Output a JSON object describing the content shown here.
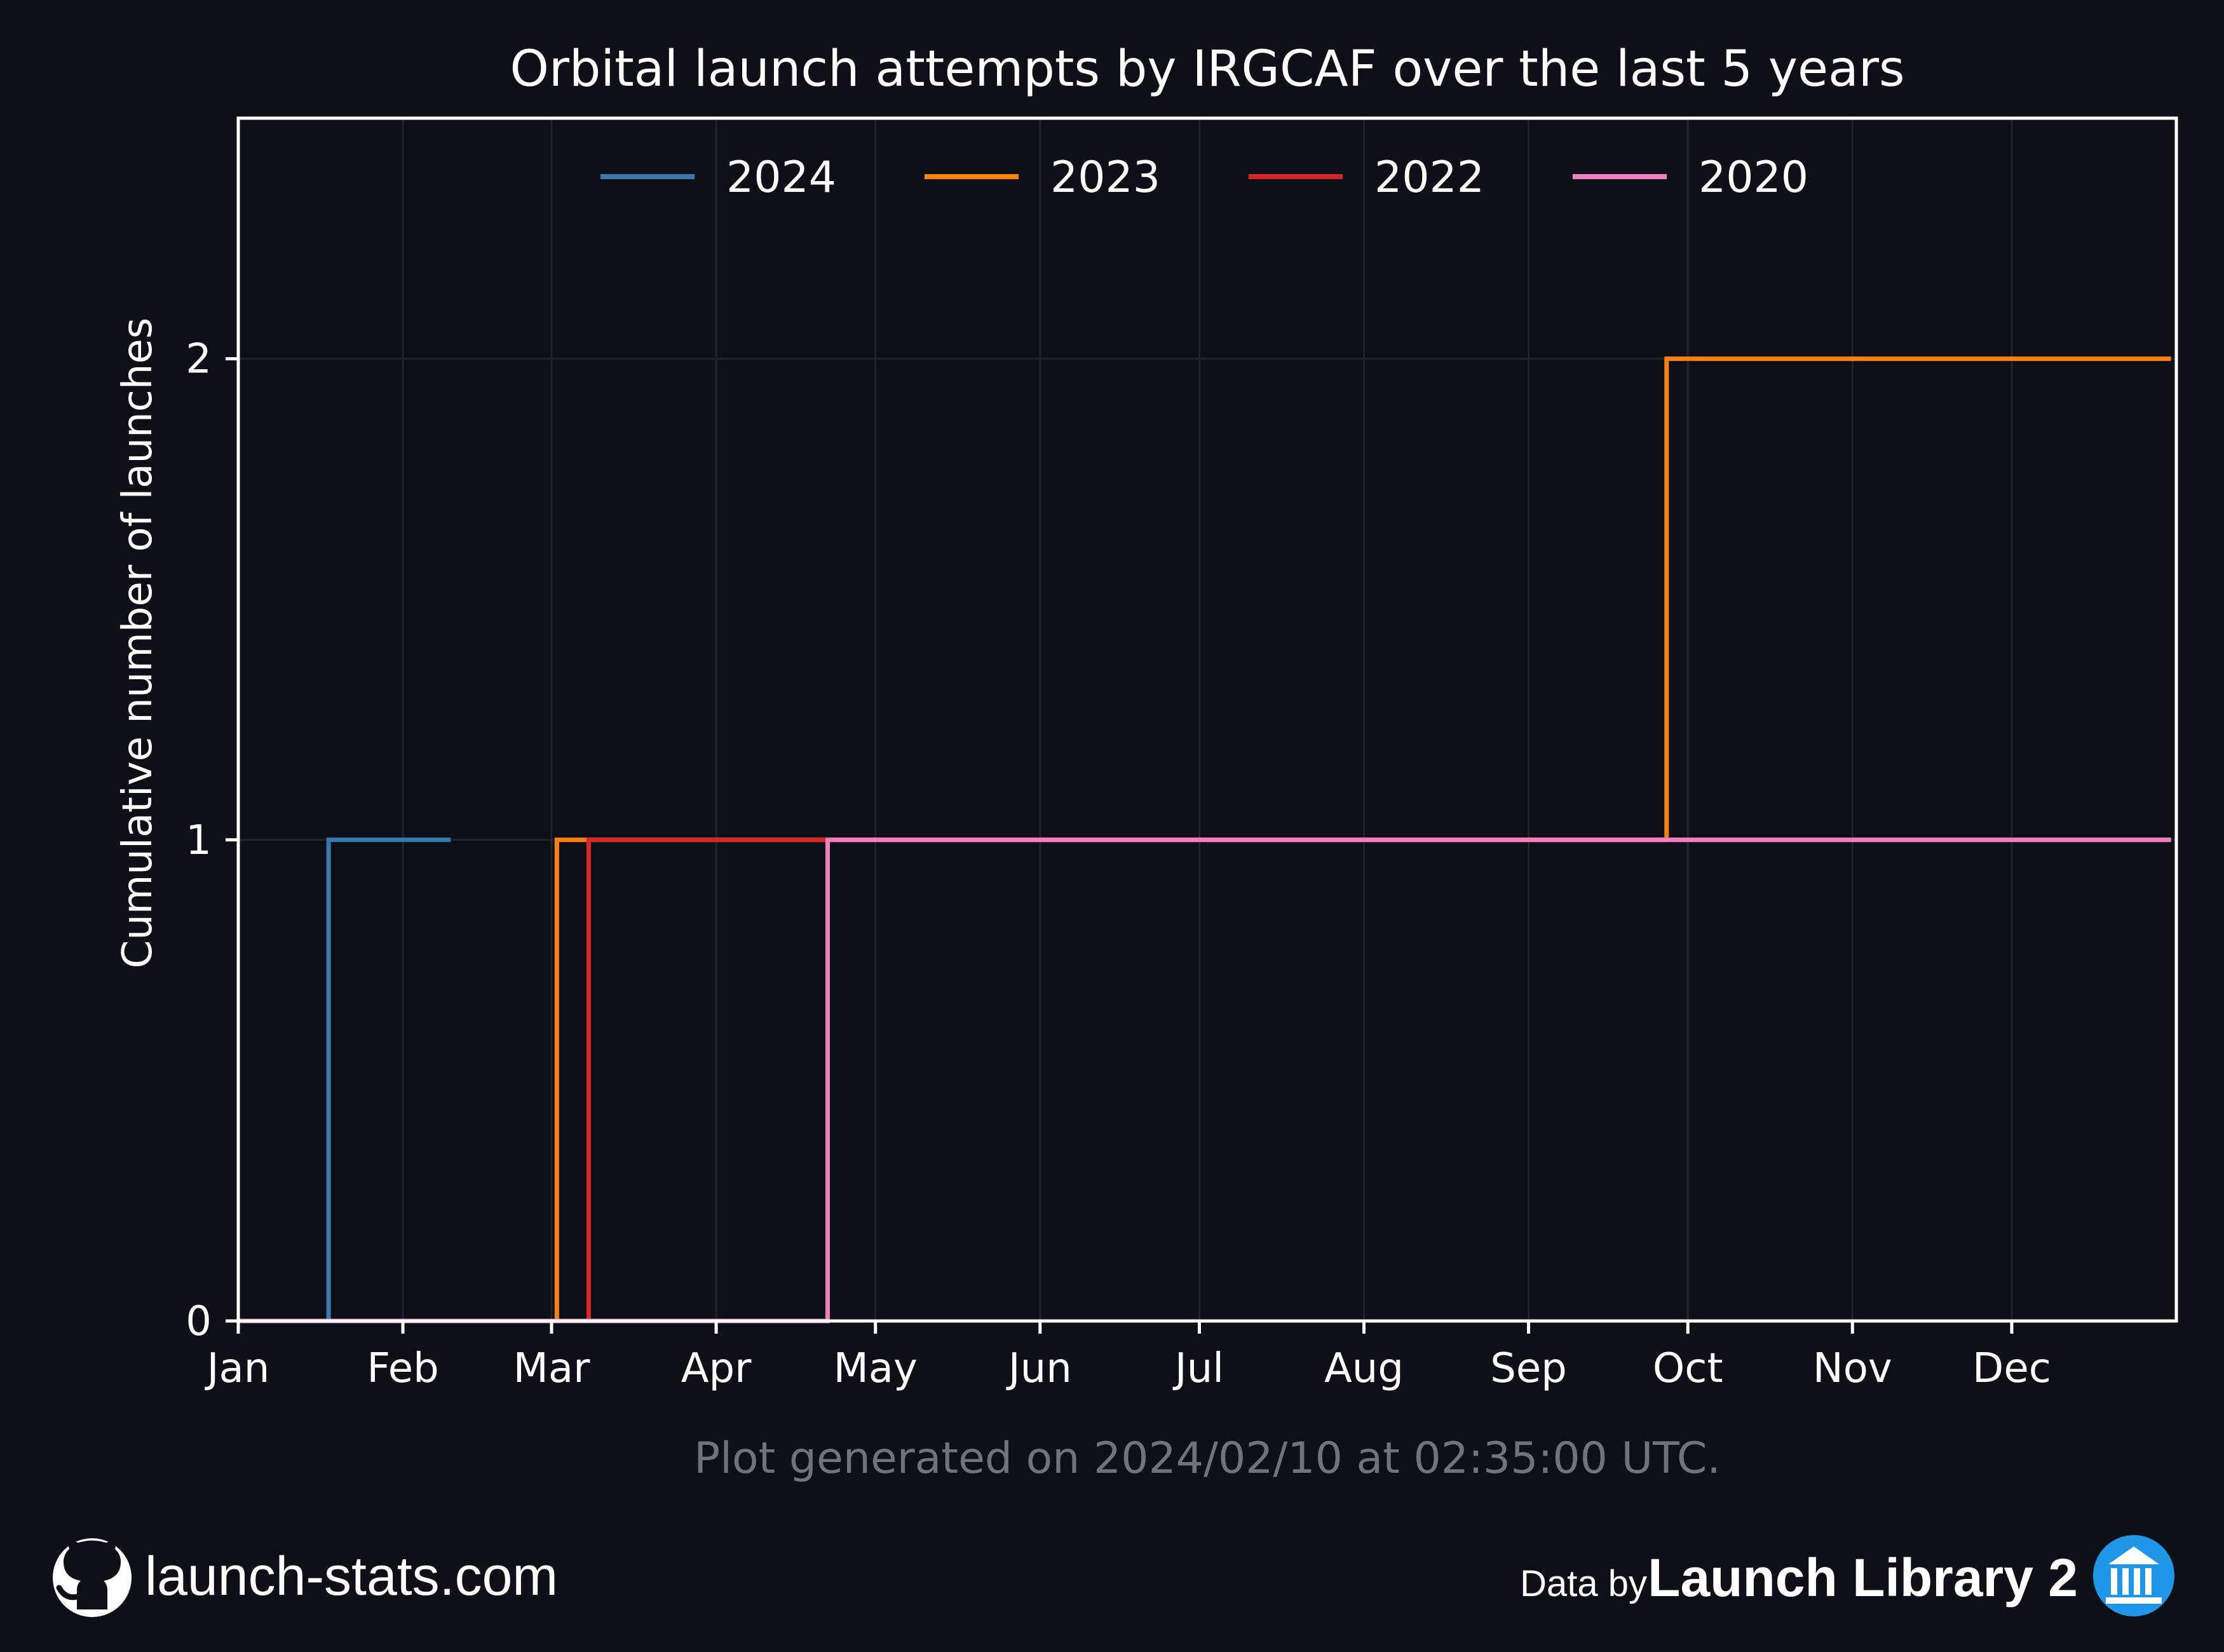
{
  "chart_data": {
    "type": "line",
    "step": true,
    "title": "Orbital launch attempts by IRGCAF over the last 5 years",
    "xlabel": "",
    "ylabel": "Cumulative number of launches",
    "x_tick_labels": [
      "Jan",
      "Feb",
      "Mar",
      "Apr",
      "May",
      "Jun",
      "Jul",
      "Aug",
      "Sep",
      "Oct",
      "Nov",
      "Dec"
    ],
    "x_domain_days": [
      0,
      365
    ],
    "ylim": [
      0,
      2.5
    ],
    "y_ticks": [
      0,
      1,
      2
    ],
    "grid": true,
    "legend_position": "top-center",
    "series": [
      {
        "name": "2024",
        "color": "#3a78b0",
        "points": [
          [
            "Jan 1",
            0
          ],
          [
            "Jan 18",
            0
          ],
          [
            "Jan 18",
            1
          ],
          [
            "Feb 10",
            1
          ]
        ]
      },
      {
        "name": "2023",
        "color": "#ff7f0e",
        "points": [
          [
            "Jan 1",
            0
          ],
          [
            "Mar 2",
            0
          ],
          [
            "Mar 2",
            1
          ],
          [
            "Sep 27",
            1
          ],
          [
            "Sep 27",
            2
          ],
          [
            "Dec 31",
            2
          ]
        ]
      },
      {
        "name": "2022",
        "color": "#d62728",
        "points": [
          [
            "Jan 1",
            0
          ],
          [
            "Mar 8",
            0
          ],
          [
            "Mar 8",
            1
          ],
          [
            "Dec 31",
            1
          ]
        ]
      },
      {
        "name": "2020",
        "color": "#f07fc0",
        "points": [
          [
            "Jan 1",
            0
          ],
          [
            "Apr 22",
            0
          ],
          [
            "Apr 22",
            1
          ],
          [
            "Dec 31",
            1
          ]
        ]
      }
    ]
  },
  "footer": {
    "generated_note": "Plot generated on 2024/02/10 at 02:35:00 UTC.",
    "site": "launch-stats.com",
    "data_by": "Data by",
    "source": "Launch Library 2",
    "github_icon": "github-icon",
    "source_icon": "launch-library-icon"
  },
  "colors": {
    "background": "#0d1017",
    "text": "#ffffff",
    "muted_text": "#6f737a",
    "grid": "#1f242d"
  }
}
